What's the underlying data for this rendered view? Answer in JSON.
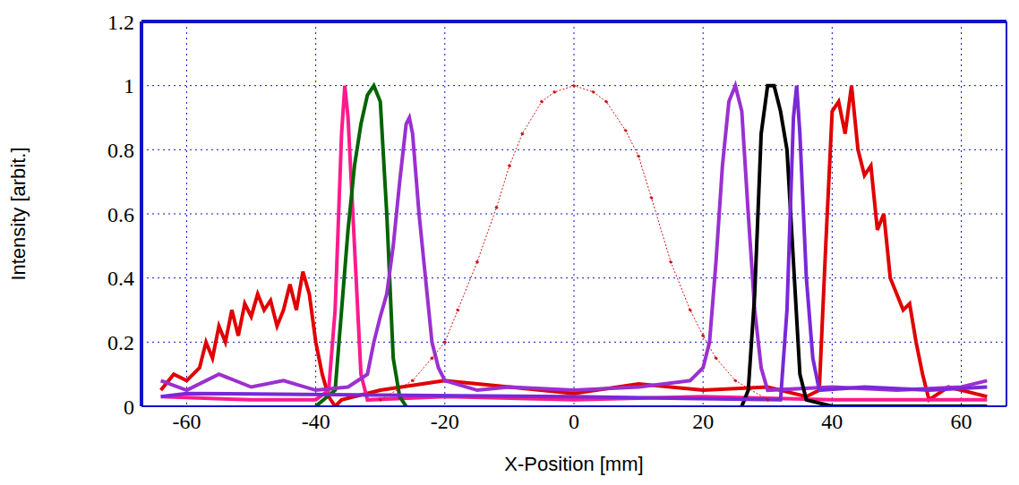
{
  "chart_data": {
    "type": "line",
    "x_label": "X-Position [mm]",
    "y_label": "Intensity [arbit.]",
    "xlim": [
      -67,
      67
    ],
    "xticks": [
      -60,
      -40,
      -20,
      0,
      20,
      40,
      60
    ],
    "ylim": [
      0,
      1.2
    ],
    "yticks": [
      0,
      0.2,
      0.4,
      0.6,
      0.8,
      1,
      1.2
    ],
    "grid": true,
    "series": [
      {
        "color": "#e00000",
        "line_style": "solid",
        "x": [
          -64,
          -62,
          -60,
          -58,
          -57,
          -56,
          -55,
          -54,
          -53,
          -52,
          -51,
          -50,
          -49,
          -48,
          -47,
          -46,
          -45,
          -44,
          -43,
          -42,
          -41,
          -40,
          -39,
          -38,
          -37,
          -36,
          -30,
          -20,
          -10,
          0,
          10,
          20,
          30,
          36,
          38,
          39,
          40,
          41,
          42,
          43,
          44,
          45,
          46,
          47,
          48,
          49,
          50,
          51,
          52,
          53,
          54,
          55,
          58,
          62,
          64
        ],
        "values": [
          0.05,
          0.1,
          0.08,
          0.12,
          0.2,
          0.15,
          0.25,
          0.2,
          0.3,
          0.22,
          0.32,
          0.28,
          0.35,
          0.3,
          0.33,
          0.25,
          0.3,
          0.38,
          0.3,
          0.42,
          0.35,
          0.2,
          0.1,
          0.03,
          0,
          0.02,
          0.05,
          0.08,
          0.06,
          0.04,
          0.07,
          0.05,
          0.06,
          0.03,
          0.05,
          0.5,
          0.92,
          0.95,
          0.85,
          1,
          0.8,
          0.72,
          0.75,
          0.55,
          0.6,
          0.4,
          0.35,
          0.3,
          0.32,
          0.2,
          0.1,
          0.02,
          0.06,
          0.04,
          0.03
        ]
      },
      {
        "color": "#ff1a8c",
        "line_style": "solid",
        "x": [
          -64,
          -50,
          -40,
          -38,
          -37,
          -36,
          -35.5,
          -35,
          -34,
          -33,
          -32,
          -20,
          0,
          20,
          40,
          64
        ],
        "values": [
          0.03,
          0.02,
          0.02,
          0.05,
          0.3,
          0.85,
          1,
          0.9,
          0.5,
          0.1,
          0.02,
          0.03,
          0.02,
          0.03,
          0.02,
          0.02
        ]
      },
      {
        "color": "#006400",
        "line_style": "solid",
        "x": [
          -40,
          -37,
          -36,
          -35,
          -34,
          -33,
          -32,
          -31,
          -30,
          -29,
          -28,
          -27,
          -26
        ],
        "values": [
          0,
          0.05,
          0.3,
          0.55,
          0.75,
          0.88,
          0.97,
          1,
          0.95,
          0.6,
          0.15,
          0.03,
          0
        ]
      },
      {
        "color": "#9b30d0",
        "line_style": "solid",
        "x": [
          -64,
          -60,
          -55,
          -50,
          -45,
          -40,
          -35,
          -32,
          -31,
          -30,
          -29,
          -28,
          -27,
          -26,
          -25.5,
          -25,
          -24,
          -23,
          -22,
          -21,
          -20,
          -15,
          -10,
          0,
          10,
          18,
          20,
          21,
          22,
          23,
          24,
          25,
          26,
          27,
          28,
          29,
          30,
          40,
          50,
          60,
          64
        ],
        "values": [
          0.08,
          0.05,
          0.1,
          0.06,
          0.08,
          0.05,
          0.06,
          0.1,
          0.2,
          0.28,
          0.35,
          0.5,
          0.7,
          0.88,
          0.9,
          0.85,
          0.6,
          0.4,
          0.2,
          0.12,
          0.08,
          0.05,
          0.06,
          0.05,
          0.06,
          0.08,
          0.12,
          0.2,
          0.45,
          0.75,
          0.95,
          1,
          0.92,
          0.6,
          0.3,
          0.12,
          0.05,
          0.06,
          0.05,
          0.06,
          0.08
        ]
      },
      {
        "color": "#000000",
        "line_style": "solid",
        "x": [
          26,
          27,
          28,
          29,
          30,
          31,
          32,
          33,
          34,
          35,
          36,
          40,
          64
        ],
        "values": [
          0,
          0.05,
          0.35,
          0.85,
          1,
          1,
          0.92,
          0.8,
          0.45,
          0.1,
          0.02,
          0,
          0
        ]
      },
      {
        "color": "#7a28d8",
        "line_style": "solid",
        "x": [
          -64,
          -60,
          0,
          32,
          33,
          34,
          34.5,
          35,
          36,
          37,
          38,
          45,
          55,
          64
        ],
        "values": [
          0.03,
          0.04,
          0.03,
          0.02,
          0.3,
          0.9,
          1,
          0.85,
          0.4,
          0.15,
          0.05,
          0.06,
          0.05,
          0.06
        ]
      },
      {
        "color": "#d01010",
        "line_style": "dotted",
        "marker": "circle",
        "x": [
          -30,
          -25,
          -22,
          -20,
          -18,
          -15,
          -12,
          -10,
          -8,
          -5,
          -3,
          0,
          3,
          5,
          8,
          10,
          12,
          15,
          18,
          20,
          22,
          25,
          30
        ],
        "values": [
          0.02,
          0.08,
          0.15,
          0.2,
          0.3,
          0.45,
          0.62,
          0.75,
          0.85,
          0.95,
          0.98,
          1,
          0.98,
          0.95,
          0.86,
          0.78,
          0.65,
          0.45,
          0.3,
          0.22,
          0.15,
          0.08,
          0.02
        ]
      }
    ]
  }
}
